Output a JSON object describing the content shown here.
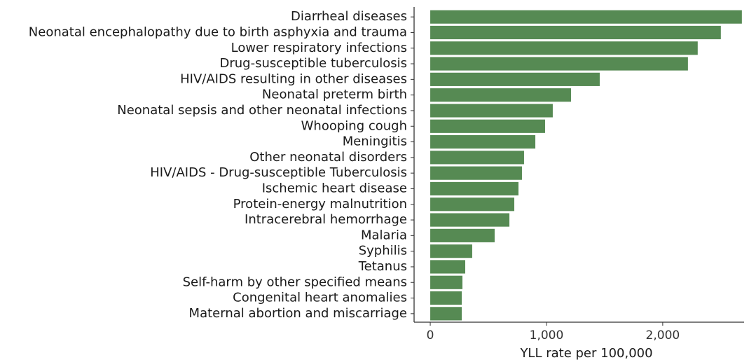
{
  "chart_data": {
    "type": "bar",
    "orientation": "horizontal",
    "x_label": "YLL rate per 100,000",
    "categories": [
      "Diarrheal diseases",
      "Neonatal encephalopathy due to birth asphyxia and trauma",
      "Lower respiratory infections",
      "Drug-susceptible tuberculosis",
      "HIV/AIDS resulting in other diseases",
      "Neonatal preterm birth",
      "Neonatal sepsis and other neonatal infections",
      "Whooping cough",
      "Meningitis",
      "Other neonatal disorders",
      "HIV/AIDS - Drug-susceptible Tuberculosis",
      "Ischemic heart disease",
      "Protein-energy malnutrition",
      "Intracerebral hemorrhage",
      "Malaria",
      "Syphilis",
      "Tetanus",
      "Self-harm by other specified means",
      "Congenital heart anomalies",
      "Maternal abortion and miscarriage"
    ],
    "values": [
      2681,
      2500,
      2301,
      2217,
      1458,
      1211,
      1054,
      988,
      904,
      807,
      789,
      759,
      723,
      681,
      554,
      361,
      301,
      277,
      271,
      271
    ],
    "color": "#568a53",
    "xlim": [
      -139,
      2700
    ],
    "xticks": [
      0,
      {
        "value": 1000,
        "label": "1,000"
      },
      {
        "value": 2000,
        "label": "2,000"
      }
    ],
    "grid": false
  }
}
